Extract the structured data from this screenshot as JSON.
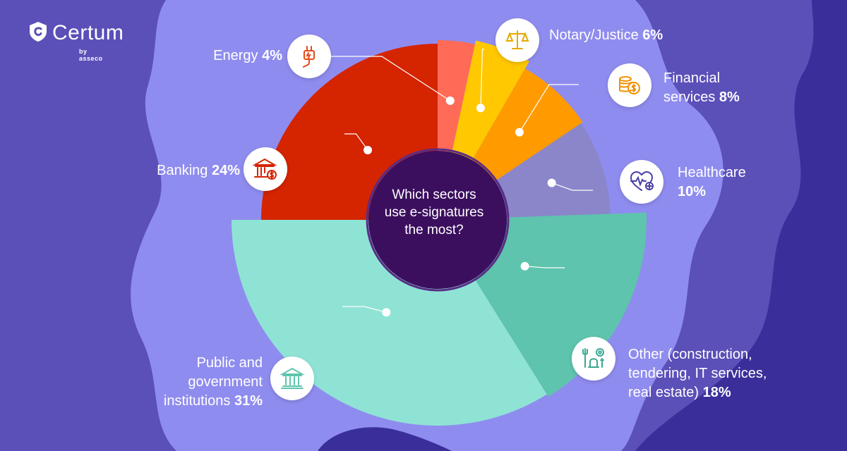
{
  "logo": {
    "brand": "Certum",
    "by": "by asseco"
  },
  "center_question": {
    "line1": "Which sectors",
    "line2": "use e-signatures",
    "line3": "the most?"
  },
  "colors": {
    "background": "#5b4fb8",
    "background_light": "#8f8cef",
    "background_dark": "#3a2f9a",
    "center_circle": "#3b0f5e"
  },
  "labels": {
    "energy": {
      "name": "Energy",
      "pct": "4%"
    },
    "notary": {
      "name": "Notary/Justice",
      "pct": "6%"
    },
    "financial": {
      "line1": "Financial",
      "line2": "services",
      "pct": "8%"
    },
    "healthcare": {
      "line1": "Healthcare",
      "pct": "10%"
    },
    "other": {
      "line1": "Other (construction,",
      "line2": "tendering, IT services,",
      "line3": "real estate)",
      "pct": "18%"
    },
    "public": {
      "line1": "Public and",
      "line2": "government",
      "line3": "institutions",
      "pct": "31%"
    },
    "banking": {
      "name": "Banking",
      "pct": "24%"
    }
  },
  "icons": {
    "energy": "plug-icon",
    "notary": "scales-icon",
    "financial": "coins-icon",
    "healthcare": "heart-pulse-icon",
    "other": "tools-icon",
    "public": "government-building-icon",
    "banking": "bank-icon"
  },
  "chart_data": {
    "type": "pie",
    "variant": "polar-area",
    "title": "Which sectors use e-signatures the most?",
    "series": [
      {
        "category": "Energy",
        "value": 4,
        "color": "#ff6b57"
      },
      {
        "category": "Notary/Justice",
        "value": 6,
        "color": "#ffc800"
      },
      {
        "category": "Financial services",
        "value": 8,
        "color": "#ff9a00"
      },
      {
        "category": "Healthcare",
        "value": 10,
        "color": "#8a86c9"
      },
      {
        "category": "Other (construction, tendering, IT services, real estate)",
        "value": 18,
        "color": "#5ec4ad"
      },
      {
        "category": "Public and government institutions",
        "value": 31,
        "color": "#8fe3d5"
      },
      {
        "category": "Banking",
        "value": 24,
        "color": "#d42400"
      }
    ]
  }
}
